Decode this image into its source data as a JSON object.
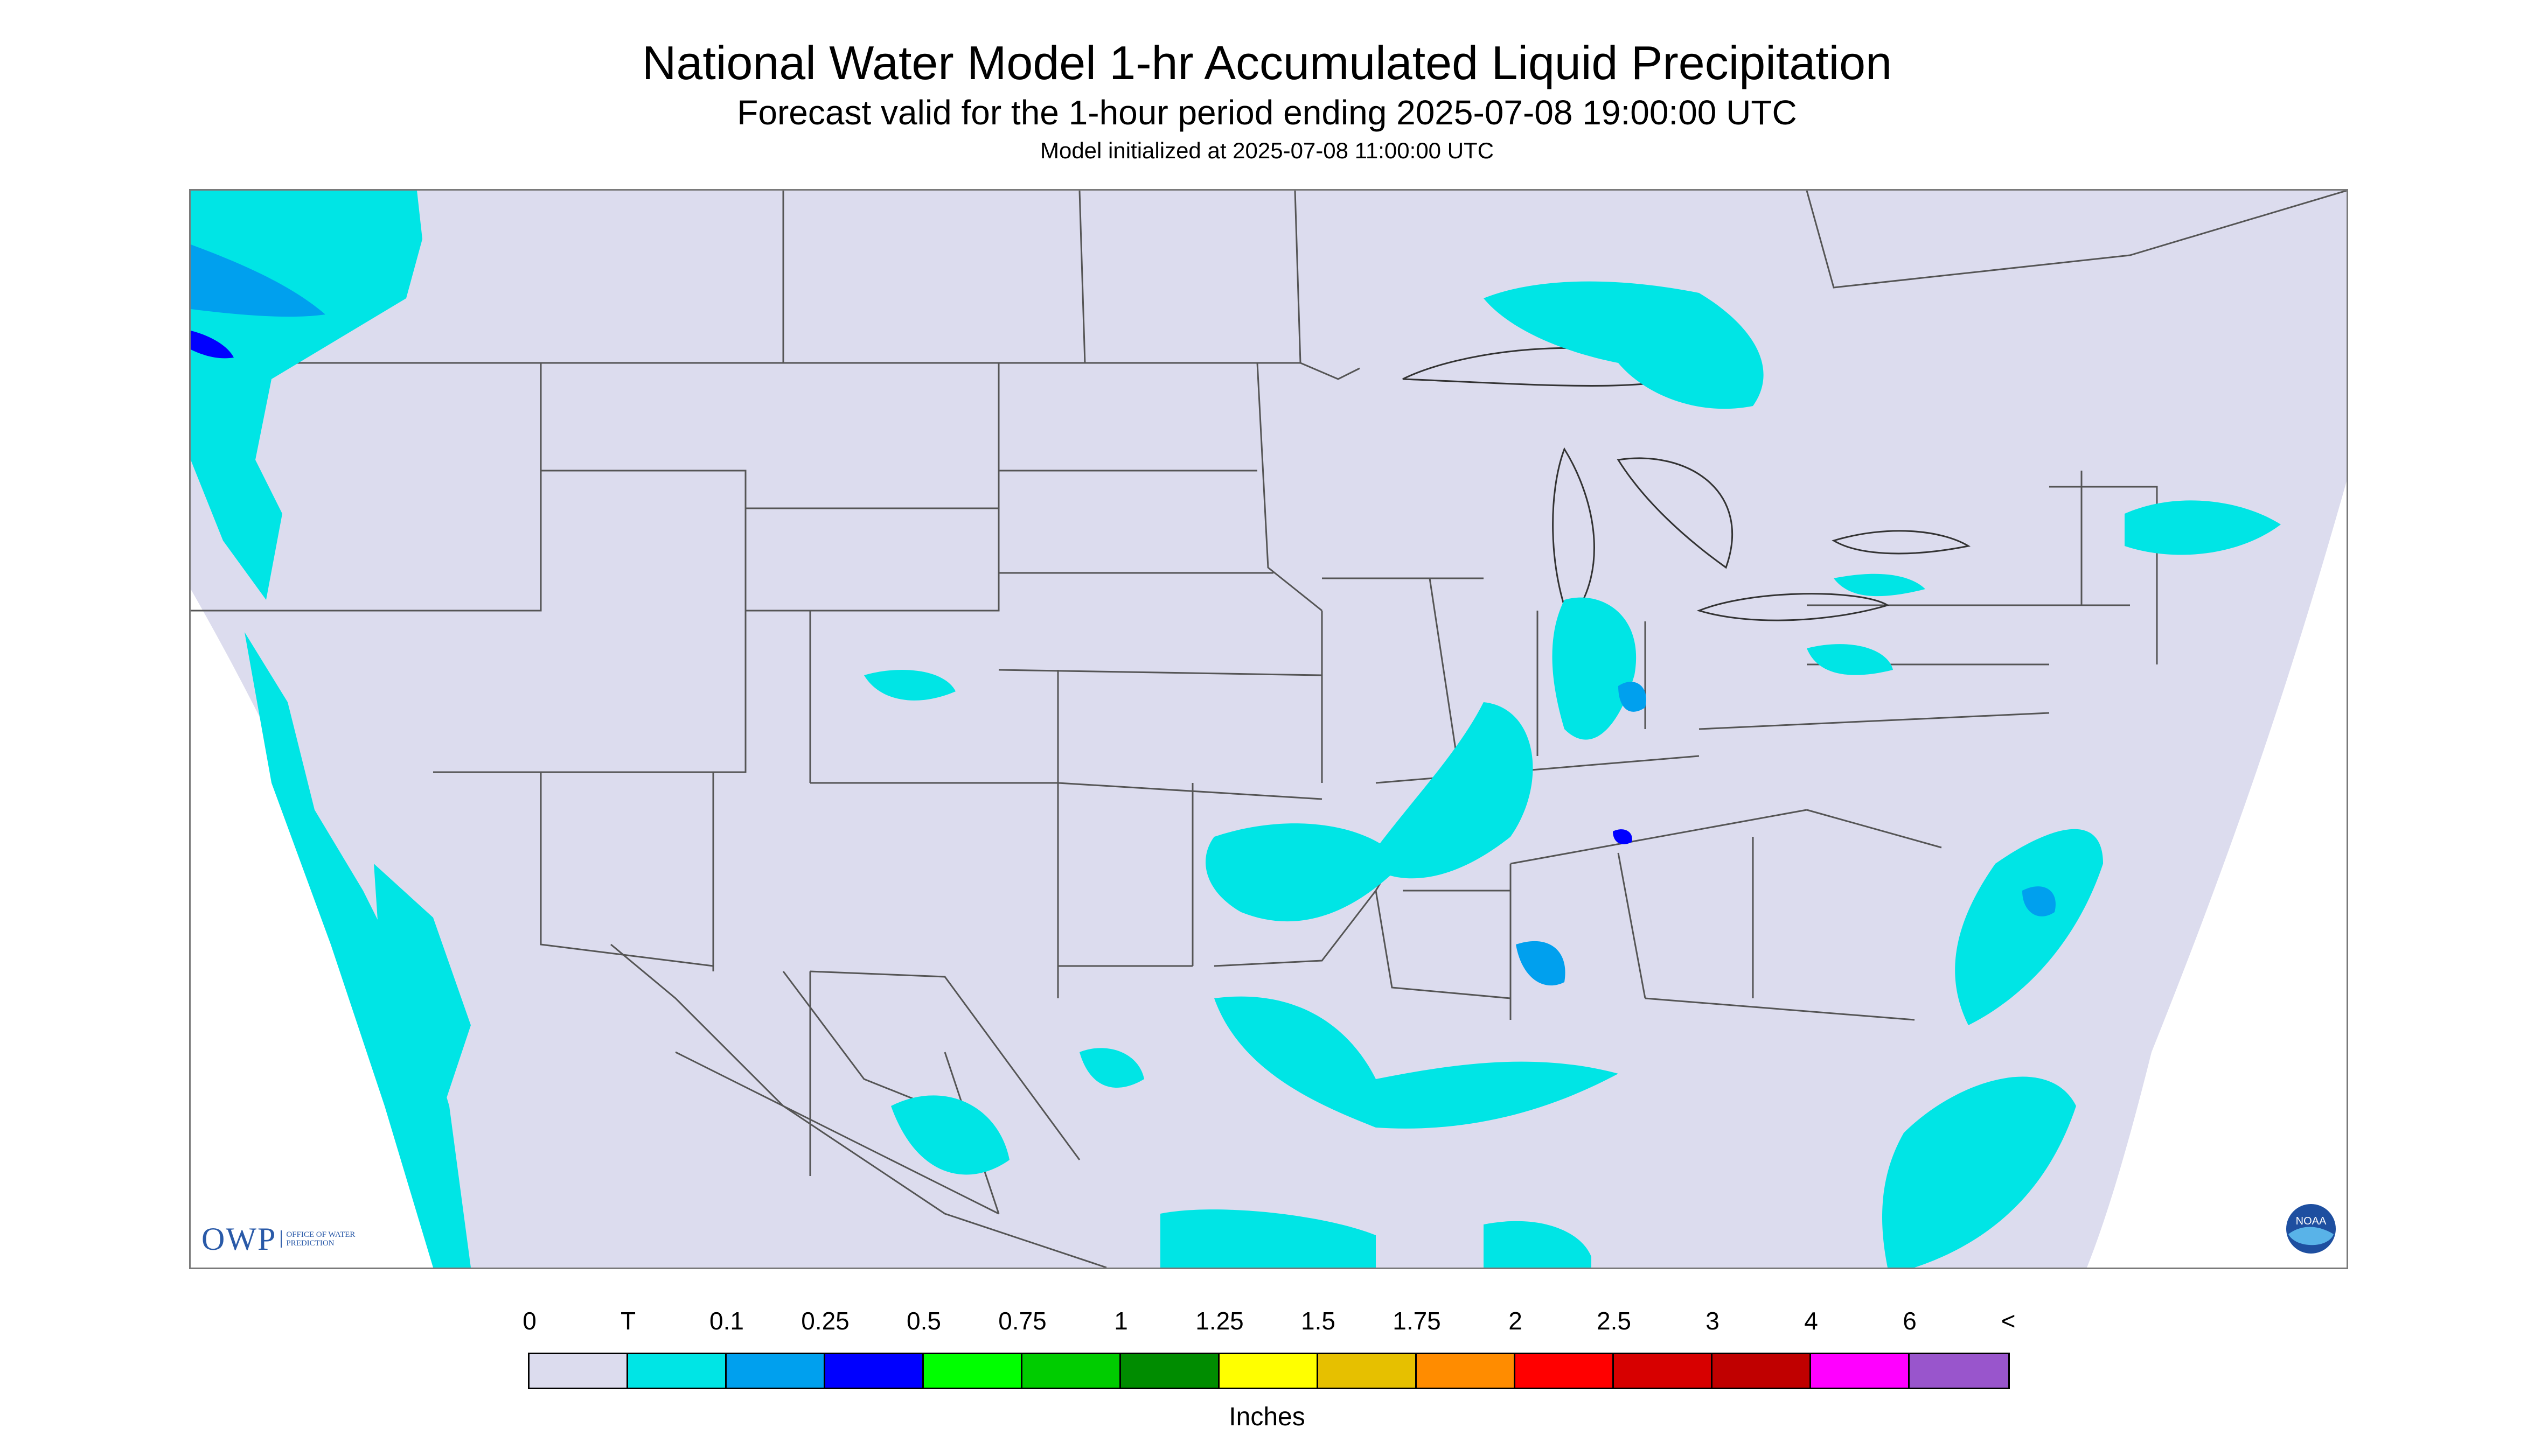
{
  "header": {
    "title": "National Water Model 1-hr Accumulated Liquid Precipitation",
    "subtitle": "Forecast valid for the 1-hour period ending 2025-07-08 19:00:00 UTC",
    "init": "Model initialized at 2025-07-08 11:00:00 UTC"
  },
  "logos": {
    "owp_text": "OWP",
    "owp_sub": "OFFICE OF WATER PREDICTION",
    "noaa_text": "NOAA"
  },
  "legend": {
    "labels": [
      "0",
      "T",
      "0.1",
      "0.25",
      "0.5",
      "0.75",
      "1",
      "1.25",
      "1.5",
      "1.75",
      "2",
      "2.5",
      "3",
      "4",
      "6",
      "<"
    ],
    "colors": [
      "#dcdcee",
      "#00e5e5",
      "#00a0ee",
      "#0000ff",
      "#00ff00",
      "#00cc00",
      "#008c00",
      "#ffff00",
      "#e6c000",
      "#ff8c00",
      "#ff0000",
      "#d70000",
      "#c00000",
      "#ff00ff",
      "#9955cc"
    ],
    "units": "Inches"
  },
  "colors": {
    "domain_fill": "#dcdcee",
    "light_precip": "#00e5e5",
    "medium_precip": "#00a0ee",
    "heavy_precip": "#0000ff",
    "border": "#555555"
  }
}
